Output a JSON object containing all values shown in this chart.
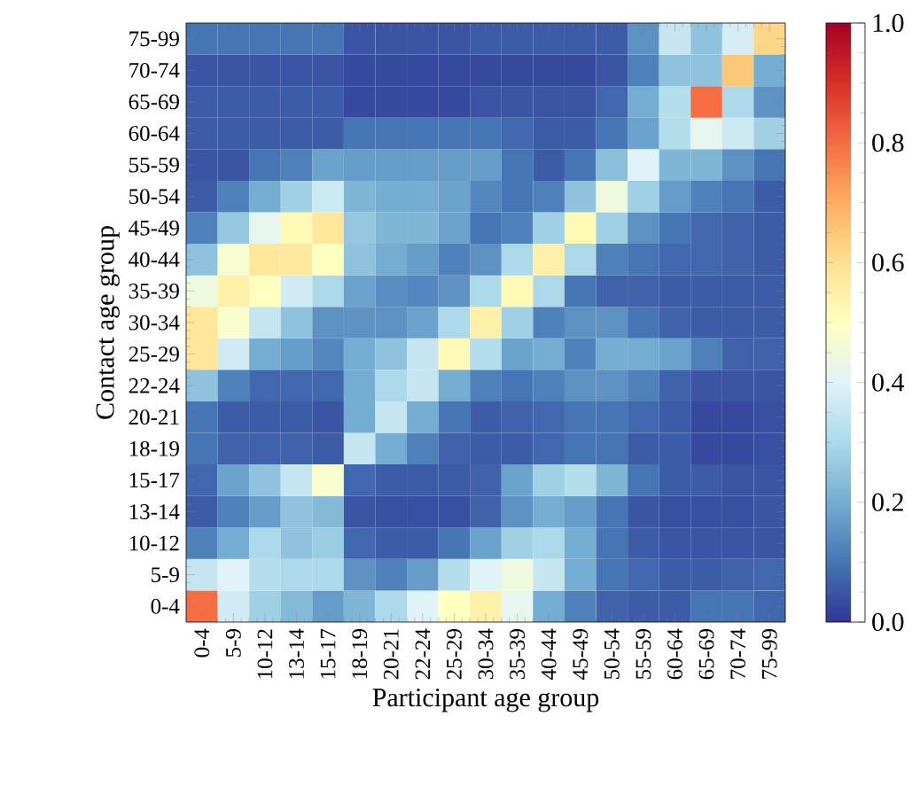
{
  "chart_data": {
    "type": "heatmap",
    "xlabel": "Participant age group",
    "ylabel": "Contact age group",
    "categories": [
      "0-4",
      "5-9",
      "10-12",
      "13-14",
      "15-17",
      "18-19",
      "20-21",
      "22-24",
      "25-29",
      "30-34",
      "35-39",
      "40-44",
      "45-49",
      "50-54",
      "55-59",
      "60-64",
      "65-69",
      "70-74",
      "75-99"
    ],
    "y_categories": [
      "75-99",
      "70-74",
      "65-69",
      "60-64",
      "55-59",
      "50-54",
      "45-49",
      "40-44",
      "35-39",
      "30-34",
      "25-29",
      "22-24",
      "20-21",
      "18-19",
      "15-17",
      "13-14",
      "10-12",
      "5-9",
      "0-4"
    ],
    "cells": [
      [
        0.1,
        0.1,
        0.1,
        0.1,
        0.1,
        0.05,
        0.05,
        0.05,
        0.05,
        0.06,
        0.06,
        0.06,
        0.06,
        0.06,
        0.15,
        0.35,
        0.25,
        0.38,
        0.62
      ],
      [
        0.05,
        0.05,
        0.05,
        0.05,
        0.05,
        0.03,
        0.03,
        0.03,
        0.03,
        0.03,
        0.03,
        0.03,
        0.03,
        0.05,
        0.12,
        0.25,
        0.25,
        0.65,
        0.2
      ],
      [
        0.06,
        0.06,
        0.06,
        0.06,
        0.06,
        0.03,
        0.03,
        0.03,
        0.03,
        0.05,
        0.05,
        0.05,
        0.05,
        0.08,
        0.2,
        0.32,
        0.8,
        0.3,
        0.15
      ],
      [
        0.06,
        0.06,
        0.06,
        0.06,
        0.06,
        0.1,
        0.1,
        0.1,
        0.1,
        0.1,
        0.08,
        0.06,
        0.06,
        0.1,
        0.18,
        0.32,
        0.42,
        0.36,
        0.28
      ],
      [
        0.05,
        0.05,
        0.1,
        0.12,
        0.18,
        0.17,
        0.17,
        0.17,
        0.17,
        0.17,
        0.1,
        0.06,
        0.1,
        0.24,
        0.4,
        0.22,
        0.22,
        0.15,
        0.1
      ],
      [
        0.06,
        0.12,
        0.2,
        0.28,
        0.36,
        0.22,
        0.2,
        0.2,
        0.18,
        0.13,
        0.1,
        0.12,
        0.25,
        0.45,
        0.28,
        0.17,
        0.12,
        0.1,
        0.06
      ],
      [
        0.12,
        0.26,
        0.42,
        0.52,
        0.58,
        0.26,
        0.22,
        0.22,
        0.18,
        0.1,
        0.12,
        0.28,
        0.52,
        0.28,
        0.15,
        0.1,
        0.08,
        0.07,
        0.06
      ],
      [
        0.25,
        0.47,
        0.58,
        0.57,
        0.5,
        0.25,
        0.2,
        0.17,
        0.12,
        0.15,
        0.3,
        0.55,
        0.3,
        0.12,
        0.1,
        0.08,
        0.08,
        0.07,
        0.06
      ],
      [
        0.45,
        0.55,
        0.5,
        0.37,
        0.3,
        0.18,
        0.14,
        0.13,
        0.15,
        0.3,
        0.52,
        0.3,
        0.1,
        0.07,
        0.07,
        0.06,
        0.06,
        0.06,
        0.06
      ],
      [
        0.58,
        0.48,
        0.35,
        0.25,
        0.15,
        0.15,
        0.15,
        0.18,
        0.3,
        0.55,
        0.28,
        0.12,
        0.15,
        0.15,
        0.1,
        0.07,
        0.06,
        0.06,
        0.06
      ],
      [
        0.58,
        0.37,
        0.2,
        0.17,
        0.13,
        0.2,
        0.25,
        0.35,
        0.52,
        0.32,
        0.18,
        0.2,
        0.12,
        0.2,
        0.2,
        0.18,
        0.12,
        0.07,
        0.07
      ],
      [
        0.25,
        0.12,
        0.08,
        0.08,
        0.08,
        0.2,
        0.3,
        0.35,
        0.2,
        0.12,
        0.1,
        0.12,
        0.15,
        0.15,
        0.12,
        0.07,
        0.05,
        0.05,
        0.05
      ],
      [
        0.1,
        0.06,
        0.06,
        0.06,
        0.05,
        0.2,
        0.35,
        0.2,
        0.1,
        0.06,
        0.07,
        0.08,
        0.1,
        0.1,
        0.08,
        0.06,
        0.03,
        0.03,
        0.04
      ],
      [
        0.1,
        0.07,
        0.07,
        0.07,
        0.06,
        0.35,
        0.2,
        0.12,
        0.07,
        0.06,
        0.06,
        0.08,
        0.1,
        0.1,
        0.06,
        0.06,
        0.03,
        0.03,
        0.04
      ],
      [
        0.08,
        0.18,
        0.25,
        0.35,
        0.48,
        0.08,
        0.06,
        0.06,
        0.06,
        0.07,
        0.18,
        0.28,
        0.32,
        0.22,
        0.1,
        0.06,
        0.06,
        0.05,
        0.05
      ],
      [
        0.06,
        0.12,
        0.17,
        0.25,
        0.23,
        0.05,
        0.04,
        0.04,
        0.04,
        0.07,
        0.15,
        0.2,
        0.17,
        0.1,
        0.05,
        0.04,
        0.04,
        0.04,
        0.05
      ],
      [
        0.12,
        0.2,
        0.3,
        0.25,
        0.27,
        0.08,
        0.06,
        0.06,
        0.1,
        0.18,
        0.28,
        0.3,
        0.2,
        0.1,
        0.06,
        0.05,
        0.05,
        0.05,
        0.05
      ],
      [
        0.35,
        0.4,
        0.32,
        0.3,
        0.3,
        0.15,
        0.12,
        0.17,
        0.32,
        0.4,
        0.45,
        0.35,
        0.2,
        0.1,
        0.08,
        0.06,
        0.06,
        0.07,
        0.08
      ],
      [
        0.8,
        0.37,
        0.28,
        0.23,
        0.17,
        0.22,
        0.3,
        0.4,
        0.5,
        0.55,
        0.42,
        0.2,
        0.12,
        0.07,
        0.06,
        0.06,
        0.1,
        0.1,
        0.08
      ]
    ],
    "clim": [
      0,
      1
    ],
    "cticks": [
      {
        "value": 0,
        "label": "0.0"
      },
      {
        "value": 0.2,
        "label": "0.2"
      },
      {
        "value": 0.4,
        "label": "0.4"
      },
      {
        "value": 0.6,
        "label": "0.6"
      },
      {
        "value": 0.8,
        "label": "0.8"
      },
      {
        "value": 1,
        "label": "1.0"
      }
    ]
  }
}
